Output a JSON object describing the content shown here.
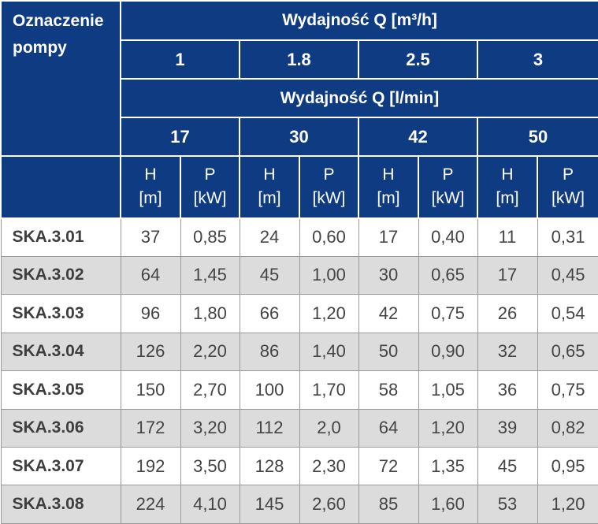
{
  "corner_label": "Oznaczenie pompy",
  "header_m3h": {
    "label": "Wydajność Q [m³/h]"
  },
  "header_lmin": {
    "label": "Wydajność Q [l/min]"
  },
  "flow_m3h": [
    "1",
    "1.8",
    "2.5",
    "3"
  ],
  "flow_lmin": [
    "17",
    "30",
    "42",
    "50"
  ],
  "columns": [
    {
      "sym": "H",
      "unit": "[m]"
    },
    {
      "sym": "P",
      "unit": "[kW]"
    },
    {
      "sym": "H",
      "unit": "[m]"
    },
    {
      "sym": "P",
      "unit": "[kW]"
    },
    {
      "sym": "H",
      "unit": "[m]"
    },
    {
      "sym": "P",
      "unit": "[kW]"
    },
    {
      "sym": "H",
      "unit": "[m]"
    },
    {
      "sym": "P",
      "unit": "[kW]"
    }
  ],
  "rows": [
    {
      "pump": "SKA.3.01",
      "values": [
        "37",
        "0,85",
        "24",
        "0,60",
        "17",
        "0,40",
        "11",
        "0,31"
      ]
    },
    {
      "pump": "SKA.3.02",
      "values": [
        "64",
        "1,45",
        "45",
        "1,00",
        "30",
        "0,65",
        "17",
        "0,45"
      ]
    },
    {
      "pump": "SKA.3.03",
      "values": [
        "96",
        "1,80",
        "66",
        "1,20",
        "42",
        "0,75",
        "26",
        "0,54"
      ]
    },
    {
      "pump": "SKA.3.04",
      "values": [
        "126",
        "2,20",
        "86",
        "1,40",
        "50",
        "0,90",
        "32",
        "0,65"
      ]
    },
    {
      "pump": "SKA.3.05",
      "values": [
        "150",
        "2,70",
        "100",
        "1,70",
        "58",
        "1,05",
        "36",
        "0,75"
      ]
    },
    {
      "pump": "SKA.3.06",
      "values": [
        "172",
        "3,20",
        "112",
        "2,0",
        "64",
        "1,20",
        "39",
        "0,82"
      ]
    },
    {
      "pump": "SKA.3.07",
      "values": [
        "192",
        "3,50",
        "128",
        "2,30",
        "72",
        "1,35",
        "45",
        "0,95"
      ]
    },
    {
      "pump": "SKA.3.08",
      "values": [
        "224",
        "4,10",
        "145",
        "2,60",
        "85",
        "1,60",
        "53",
        "1,20"
      ]
    }
  ],
  "colors": {
    "header_bg": "#0f3b82",
    "row_alt": "#dcdcdc",
    "text": "#444444"
  }
}
